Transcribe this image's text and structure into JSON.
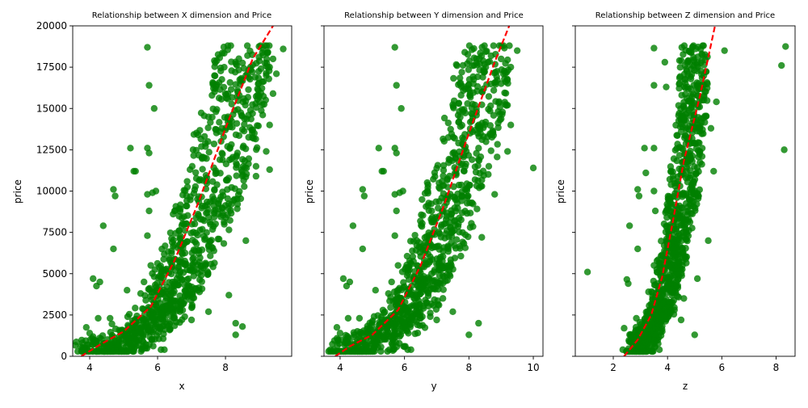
{
  "colors": {
    "points": "#008000",
    "fit_line": "#ff0000",
    "axes": "#000000",
    "background": "#ffffff"
  },
  "chart_data": [
    {
      "type": "scatter",
      "title": "Relationship between X dimension and Price",
      "xlabel": "x",
      "ylabel": "price",
      "xlim": [
        3.5,
        9.95
      ],
      "ylim": [
        0,
        20000
      ],
      "xticks": [
        "4",
        "6",
        "8"
      ],
      "yticks": [
        "0",
        "2500",
        "5000",
        "7500",
        "10000",
        "12500",
        "15000",
        "17500",
        "20000"
      ],
      "series": [
        {
          "kind": "points",
          "points": [
            [
              3.8,
              400
            ],
            [
              3.9,
              1750
            ],
            [
              4.0,
              1400
            ],
            [
              4.1,
              4700
            ],
            [
              4.2,
              4250
            ],
            [
              4.25,
              2300
            ],
            [
              4.3,
              4500
            ],
            [
              4.4,
              7900
            ],
            [
              4.6,
              2300
            ],
            [
              4.7,
              10100
            ],
            [
              4.75,
              9700
            ],
            [
              4.7,
              6500
            ],
            [
              5.1,
              4000
            ],
            [
              5.2,
              12600
            ],
            [
              5.3,
              11200
            ],
            [
              5.35,
              11200
            ],
            [
              5.5,
              3800
            ],
            [
              5.6,
              4500
            ],
            [
              5.7,
              18700
            ],
            [
              5.75,
              16400
            ],
            [
              5.7,
              12600
            ],
            [
              5.75,
              12300
            ],
            [
              5.7,
              9800
            ],
            [
              5.85,
              9900
            ],
            [
              5.95,
              10000
            ],
            [
              5.9,
              15000
            ],
            [
              5.75,
              8800
            ],
            [
              5.7,
              7300
            ],
            [
              5.8,
              5500
            ],
            [
              6.1,
              400
            ],
            [
              6.2,
              400
            ],
            [
              6.5,
              2300
            ],
            [
              6.8,
              2400
            ],
            [
              7.0,
              2200
            ],
            [
              7.5,
              2700
            ],
            [
              8.1,
              3700
            ],
            [
              8.3,
              2000
            ],
            [
              8.3,
              1300
            ],
            [
              8.5,
              1800
            ],
            [
              9.2,
              12400
            ],
            [
              9.3,
              11300
            ],
            [
              9.3,
              14000
            ],
            [
              9.3,
              17500
            ],
            [
              9.4,
              18000
            ],
            [
              9.5,
              17100
            ],
            [
              9.7,
              18600
            ],
            [
              9.4,
              15900
            ],
            [
              9.2,
              17000
            ],
            [
              9.0,
              15400
            ],
            [
              8.9,
              11500
            ],
            [
              8.9,
              10900
            ],
            [
              8.6,
              7000
            ]
          ]
        },
        {
          "kind": "line",
          "points": [
            [
              3.75,
              0
            ],
            [
              4.3,
              700
            ],
            [
              5.0,
              1500
            ],
            [
              5.8,
              3000
            ],
            [
              6.5,
              5800
            ],
            [
              7.2,
              9300
            ],
            [
              8.0,
              13800
            ],
            [
              8.8,
              18000
            ],
            [
              9.4,
              20000
            ]
          ]
        }
      ],
      "dense_band": [
        [
          4.0,
          0
        ],
        [
          5.0,
          800
        ],
        [
          6.0,
          2200
        ],
        [
          6.5,
          4000
        ],
        [
          7.0,
          6500
        ],
        [
          7.6,
          10000
        ],
        [
          8.2,
          14500
        ],
        [
          8.6,
          18800
        ]
      ],
      "dense_band_width": [
        0.5,
        0.6,
        0.6,
        0.7,
        0.8,
        0.9,
        0.9,
        0.8
      ]
    },
    {
      "type": "scatter",
      "title": "Relationship between Y dimension and Price",
      "xlabel": "y",
      "ylabel": "price",
      "xlim": [
        3.5,
        10.3
      ],
      "ylim": [
        0,
        20000
      ],
      "xticks": [
        "4",
        "6",
        "8",
        "10"
      ],
      "yticks": [],
      "series": [
        {
          "kind": "points",
          "points": [
            [
              3.8,
              400
            ],
            [
              3.9,
              1750
            ],
            [
              4.0,
              1400
            ],
            [
              4.1,
              4700
            ],
            [
              4.2,
              4250
            ],
            [
              4.25,
              2300
            ],
            [
              4.3,
              4500
            ],
            [
              4.4,
              7900
            ],
            [
              4.6,
              2300
            ],
            [
              4.7,
              10100
            ],
            [
              4.75,
              9700
            ],
            [
              4.7,
              6500
            ],
            [
              5.1,
              4000
            ],
            [
              5.2,
              12600
            ],
            [
              5.3,
              11200
            ],
            [
              5.35,
              11200
            ],
            [
              5.5,
              3800
            ],
            [
              5.6,
              4500
            ],
            [
              5.7,
              18700
            ],
            [
              5.75,
              16400
            ],
            [
              5.7,
              12600
            ],
            [
              5.75,
              12300
            ],
            [
              5.7,
              9800
            ],
            [
              5.85,
              9900
            ],
            [
              5.95,
              10000
            ],
            [
              5.9,
              15000
            ],
            [
              5.75,
              8800
            ],
            [
              5.7,
              7300
            ],
            [
              5.8,
              5500
            ],
            [
              6.1,
              400
            ],
            [
              6.2,
              400
            ],
            [
              6.5,
              2300
            ],
            [
              6.8,
              2400
            ],
            [
              7.0,
              2200
            ],
            [
              7.5,
              2700
            ],
            [
              8.0,
              1300
            ],
            [
              8.3,
              2000
            ],
            [
              8.4,
              7200
            ],
            [
              9.2,
              12400
            ],
            [
              9.3,
              14000
            ],
            [
              9.3,
              17500
            ],
            [
              9.5,
              18500
            ],
            [
              9.2,
              15200
            ],
            [
              9.0,
              18000
            ],
            [
              10.0,
              11400
            ],
            [
              8.8,
              9800
            ]
          ]
        },
        {
          "kind": "line",
          "points": [
            [
              3.85,
              0
            ],
            [
              4.3,
              600
            ],
            [
              5.0,
              1300
            ],
            [
              5.8,
              2800
            ],
            [
              6.5,
              5500
            ],
            [
              7.2,
              9000
            ],
            [
              8.0,
              13500
            ],
            [
              8.8,
              17800
            ],
            [
              9.25,
              20000
            ]
          ]
        }
      ],
      "dense_band": [
        [
          4.0,
          0
        ],
        [
          5.0,
          800
        ],
        [
          6.0,
          2200
        ],
        [
          6.5,
          4000
        ],
        [
          7.0,
          6500
        ],
        [
          7.6,
          10000
        ],
        [
          8.2,
          14500
        ],
        [
          8.6,
          18800
        ]
      ],
      "dense_band_width": [
        0.5,
        0.6,
        0.6,
        0.7,
        0.8,
        0.9,
        0.9,
        0.8
      ]
    },
    {
      "type": "scatter",
      "title": "Relationship between Z dimension and Price",
      "xlabel": "z",
      "ylabel": "price",
      "xlim": [
        0.6,
        8.7
      ],
      "ylim": [
        0,
        20000
      ],
      "xticks": [
        "2",
        "4",
        "6",
        "8"
      ],
      "yticks": [],
      "series": [
        {
          "kind": "points",
          "points": [
            [
              1.05,
              5100
            ],
            [
              2.35,
              400
            ],
            [
              2.4,
              1700
            ],
            [
              2.5,
              4650
            ],
            [
              2.55,
              4400
            ],
            [
              2.6,
              7900
            ],
            [
              2.85,
              2300
            ],
            [
              2.9,
              10100
            ],
            [
              2.95,
              9700
            ],
            [
              2.9,
              6500
            ],
            [
              3.15,
              12600
            ],
            [
              3.2,
              11100
            ],
            [
              3.3,
              3900
            ],
            [
              3.5,
              18650
            ],
            [
              3.5,
              16400
            ],
            [
              3.5,
              12600
            ],
            [
              3.5,
              10000
            ],
            [
              3.55,
              8800
            ],
            [
              3.5,
              5500
            ],
            [
              3.7,
              400
            ],
            [
              4.0,
              2400
            ],
            [
              4.5,
              2200
            ],
            [
              4.6,
              3500
            ],
            [
              5.0,
              1300
            ],
            [
              5.1,
              4700
            ],
            [
              5.5,
              7000
            ],
            [
              6.1,
              18500
            ],
            [
              8.2,
              17600
            ],
            [
              8.35,
              18750
            ],
            [
              8.3,
              12500
            ],
            [
              5.8,
              15400
            ],
            [
              5.7,
              11200
            ],
            [
              5.6,
              13800
            ],
            [
              3.9,
              17800
            ],
            [
              3.95,
              16300
            ]
          ]
        },
        {
          "kind": "line",
          "points": [
            [
              2.4,
              0
            ],
            [
              2.9,
              1000
            ],
            [
              3.4,
              2500
            ],
            [
              3.8,
              4800
            ],
            [
              4.2,
              8200
            ],
            [
              4.6,
              11800
            ],
            [
              5.2,
              15800
            ],
            [
              5.75,
              20000
            ]
          ]
        }
      ],
      "dense_band": [
        [
          2.7,
          0
        ],
        [
          3.2,
          1000
        ],
        [
          3.7,
          2500
        ],
        [
          4.0,
          4500
        ],
        [
          4.3,
          7000
        ],
        [
          4.6,
          10000
        ],
        [
          4.9,
          14500
        ],
        [
          5.0,
          18800
        ]
      ],
      "dense_band_width": [
        0.35,
        0.35,
        0.4,
        0.45,
        0.5,
        0.55,
        0.55,
        0.5
      ]
    }
  ]
}
